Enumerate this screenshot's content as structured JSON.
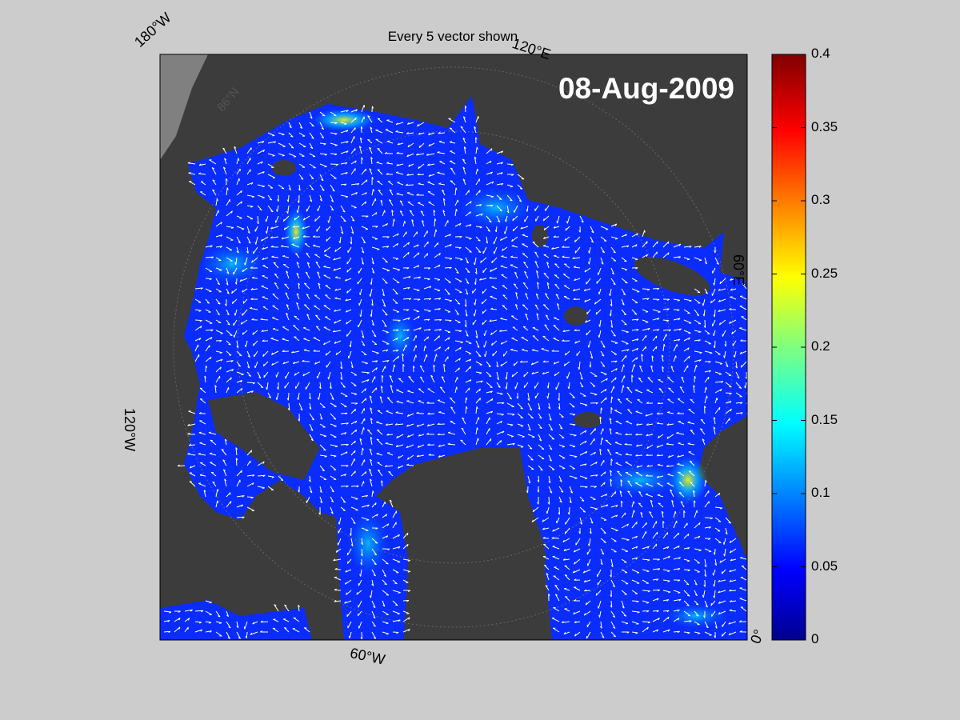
{
  "title": "Every 5 vector shown",
  "date": "08-Aug-2009",
  "longitude_labels": {
    "w180": "180°W",
    "e120": "120°E",
    "e60": "60°E",
    "w120": "120°W",
    "w60": "60°W",
    "zero": "0°"
  },
  "latitude_label": "86°N",
  "colorbar": {
    "ticks": [
      "0.4",
      "0.35",
      "0.3",
      "0.25",
      "0.2",
      "0.15",
      "0.1",
      "0.05",
      "0"
    ],
    "range": [
      0,
      0.4
    ],
    "colormap": "jet"
  },
  "colors": {
    "background": "#cccccc",
    "land": "#3c3c3c",
    "ice_blue": "#0a2cff",
    "vector": "#ffffff"
  }
}
